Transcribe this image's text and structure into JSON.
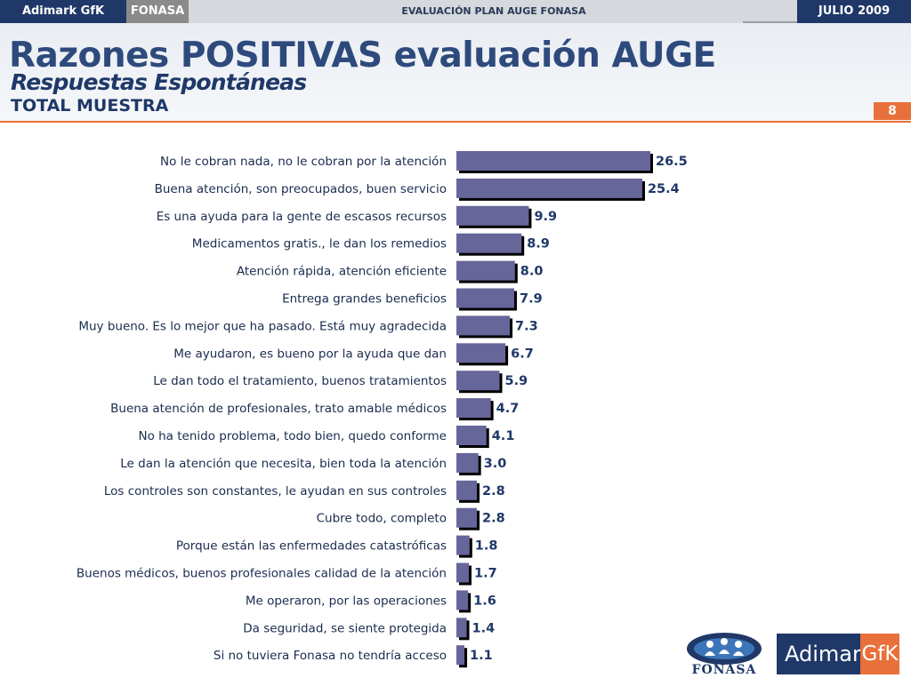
{
  "topbar": {
    "brand": "Adimark GfK",
    "client": "FONASA",
    "study": "EVALUACIÓN PLAN AUGE FONASA",
    "date": "JULIO 2009"
  },
  "header": {
    "title": "Razones POSITIVAS evaluación AUGE",
    "subtitle": "Respuestas Espontáneas",
    "sample": "TOTAL MUESTRA",
    "page_number": "8"
  },
  "logos": {
    "fonasa": "FONASA",
    "adimark": "Adimark",
    "gfk": "GfK"
  },
  "colors": {
    "bar": "#66669a",
    "bar_shadow": "#000000",
    "accent": "#e8703a",
    "navy": "#1f3868"
  },
  "chart_data": {
    "type": "bar",
    "orientation": "horizontal",
    "categories": [
      "No le cobran nada, no le cobran por la atención",
      "Buena atención, son preocupados, buen servicio",
      "Es una ayuda para la gente de escasos recursos",
      "Medicamentos gratis., le dan los remedios",
      "Atención rápida, atención eficiente",
      "Entrega grandes beneficios",
      "Muy bueno. Es lo mejor que ha pasado. Está muy agradecida",
      "Me ayudaron, es bueno por la ayuda que dan",
      "Le dan todo el tratamiento, buenos tratamientos",
      "Buena atención de profesionales, trato amable médicos",
      "No ha tenido problema, todo bien, quedo conforme",
      "Le dan la atención que necesita, bien toda la atención",
      "Los controles son constantes, le ayudan en sus controles",
      "Cubre todo, completo",
      "Porque están las enfermedades catastróficas",
      "Buenos médicos, buenos profesionales calidad de la atención",
      "Me operaron, por las operaciones",
      "Da seguridad, se siente protegida",
      "Si no tuviera Fonasa no tendría acceso"
    ],
    "values": [
      26.5,
      25.4,
      9.9,
      8.9,
      8.0,
      7.9,
      7.3,
      6.7,
      5.9,
      4.7,
      4.1,
      3.0,
      2.8,
      2.8,
      1.8,
      1.7,
      1.6,
      1.4,
      1.1
    ],
    "value_labels": [
      "26.5",
      "25.4",
      "9.9",
      "8.9",
      "8.0",
      "7.9",
      "7.3",
      "6.7",
      "5.9",
      "4.7",
      "4.1",
      "3.0",
      "2.8",
      "2.8",
      "1.8",
      "1.7",
      "1.6",
      "1.4",
      "1.1"
    ],
    "xlim": [
      0,
      30
    ],
    "grid": false,
    "legend": "none"
  }
}
